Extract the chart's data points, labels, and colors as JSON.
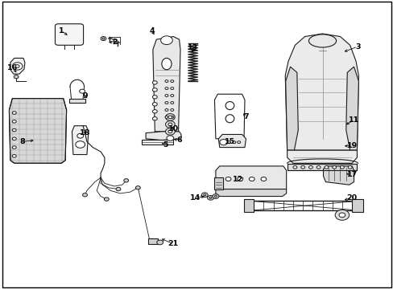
{
  "background_color": "#ffffff",
  "border_color": "#000000",
  "line_color": "#1a1a1a",
  "text_color": "#000000",
  "fig_width": 4.89,
  "fig_height": 3.6,
  "dpi": 100,
  "label_positions": {
    "1": [
      0.155,
      0.895,
      0.175,
      0.875
    ],
    "2": [
      0.29,
      0.855,
      0.27,
      0.855
    ],
    "3": [
      0.91,
      0.84,
      0.87,
      0.82
    ],
    "4": [
      0.385,
      0.895,
      0.395,
      0.875
    ],
    "5": [
      0.42,
      0.5,
      0.41,
      0.505
    ],
    "6": [
      0.455,
      0.515,
      0.435,
      0.52
    ],
    "7": [
      0.625,
      0.595,
      0.615,
      0.615
    ],
    "8": [
      0.055,
      0.51,
      0.09,
      0.515
    ],
    "9": [
      0.215,
      0.67,
      0.22,
      0.66
    ],
    "10": [
      0.44,
      0.555,
      0.43,
      0.565
    ],
    "11": [
      0.9,
      0.585,
      0.875,
      0.565
    ],
    "12": [
      0.605,
      0.38,
      0.625,
      0.385
    ],
    "13": [
      0.49,
      0.835,
      0.49,
      0.82
    ],
    "14": [
      0.495,
      0.315,
      0.525,
      0.32
    ],
    "15": [
      0.585,
      0.51,
      0.565,
      0.515
    ],
    "16": [
      0.03,
      0.765,
      0.045,
      0.745
    ],
    "17": [
      0.895,
      0.395,
      0.875,
      0.4
    ],
    "18": [
      0.215,
      0.54,
      0.22,
      0.555
    ],
    "19": [
      0.895,
      0.495,
      0.87,
      0.495
    ],
    "20": [
      0.895,
      0.315,
      0.87,
      0.305
    ],
    "21": [
      0.44,
      0.155,
      0.405,
      0.175
    ]
  }
}
